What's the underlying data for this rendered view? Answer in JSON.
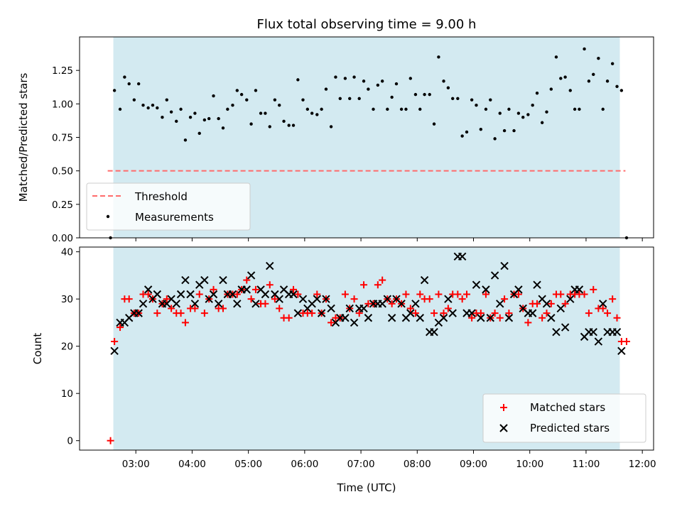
{
  "chart_data": [
    {
      "type": "scatter",
      "title": "Flux total observing time = 9.00 h",
      "ylabel": "Matched/Predicted stars",
      "xlabel": "",
      "xlim": [
        2.0,
        12.2
      ],
      "ylim": [
        0.0,
        1.5
      ],
      "yticks": [
        0.0,
        0.25,
        0.5,
        0.75,
        1.0,
        1.25
      ],
      "ytick_labels": [
        "0.00",
        "0.25",
        "0.50",
        "0.75",
        "1.00",
        "1.25"
      ],
      "observing_window": [
        2.6,
        11.6
      ],
      "window_color": "#d3eaf1",
      "threshold": {
        "label": "Threshold",
        "value": 0.5,
        "x_range": [
          2.5,
          11.7
        ],
        "color": "#ff6b6b"
      },
      "legend": {
        "position": "lower-left",
        "entries": [
          "Threshold",
          "Measurements"
        ]
      },
      "series": [
        {
          "name": "Measurements",
          "color": "#000000",
          "x": [
            2.55,
            2.62,
            2.72,
            2.8,
            2.88,
            2.97,
            3.05,
            3.13,
            3.22,
            3.3,
            3.38,
            3.47,
            3.55,
            3.63,
            3.72,
            3.8,
            3.88,
            3.97,
            4.05,
            4.13,
            4.22,
            4.3,
            4.38,
            4.47,
            4.55,
            4.63,
            4.72,
            4.8,
            4.88,
            4.97,
            5.05,
            5.13,
            5.22,
            5.3,
            5.38,
            5.47,
            5.55,
            5.63,
            5.72,
            5.8,
            5.88,
            5.97,
            6.05,
            6.13,
            6.22,
            6.3,
            6.38,
            6.47,
            6.55,
            6.63,
            6.72,
            6.8,
            6.88,
            6.97,
            7.05,
            7.13,
            7.22,
            7.3,
            7.38,
            7.47,
            7.55,
            7.63,
            7.72,
            7.8,
            7.88,
            7.97,
            8.05,
            8.13,
            8.22,
            8.3,
            8.38,
            8.47,
            8.55,
            8.63,
            8.72,
            8.8,
            8.88,
            8.97,
            9.05,
            9.13,
            9.22,
            9.3,
            9.38,
            9.47,
            9.55,
            9.63,
            9.72,
            9.8,
            9.88,
            9.97,
            10.05,
            10.13,
            10.22,
            10.3,
            10.38,
            10.47,
            10.55,
            10.63,
            10.72,
            10.8,
            10.88,
            10.97,
            11.05,
            11.13,
            11.22,
            11.3,
            11.38,
            11.47,
            11.55,
            11.63,
            11.72
          ],
          "y": [
            0.0,
            1.1,
            0.96,
            1.2,
            1.15,
            1.03,
            1.15,
            0.99,
            0.97,
            0.99,
            0.97,
            0.9,
            1.03,
            0.94,
            0.87,
            0.96,
            0.73,
            0.9,
            0.93,
            0.78,
            0.88,
            0.89,
            1.06,
            0.89,
            0.82,
            0.96,
            0.99,
            1.1,
            1.07,
            1.03,
            0.85,
            1.1,
            0.93,
            0.93,
            0.83,
            1.03,
            0.99,
            0.87,
            0.84,
            0.84,
            1.18,
            1.03,
            0.96,
            0.93,
            0.92,
            0.96,
            1.11,
            0.83,
            1.2,
            1.04,
            1.19,
            1.04,
            1.2,
            1.04,
            1.17,
            1.11,
            0.96,
            1.14,
            1.17,
            0.96,
            1.05,
            1.15,
            0.96,
            0.96,
            1.19,
            1.07,
            0.96,
            1.07,
            1.07,
            0.85,
            1.35,
            1.17,
            1.12,
            1.04,
            1.04,
            0.76,
            0.79,
            1.03,
            0.99,
            0.81,
            0.96,
            1.03,
            0.74,
            0.93,
            0.8,
            0.96,
            0.8,
            0.93,
            0.9,
            0.92,
            0.99,
            1.08,
            0.86,
            0.94,
            1.11,
            1.35,
            1.19,
            1.2,
            1.1,
            0.96,
            0.96,
            1.41,
            1.17,
            1.22,
            1.34,
            0.96,
            1.17,
            1.3,
            1.13,
            1.1,
            0.0
          ]
        }
      ]
    },
    {
      "type": "scatter",
      "title": "",
      "xlabel": "Time (UTC)",
      "ylabel": "Count",
      "xlim": [
        2.0,
        12.2
      ],
      "ylim": [
        -2.0,
        41.0
      ],
      "yticks": [
        0,
        10,
        20,
        30,
        40
      ],
      "ytick_labels": [
        "0",
        "10",
        "20",
        "30",
        "40"
      ],
      "xticks": [
        3,
        4,
        5,
        6,
        7,
        8,
        9,
        10,
        11,
        12
      ],
      "xtick_labels": [
        "03:00",
        "04:00",
        "05:00",
        "06:00",
        "07:00",
        "08:00",
        "09:00",
        "10:00",
        "11:00",
        "12:00"
      ],
      "observing_window": [
        2.6,
        11.6
      ],
      "window_color": "#d3eaf1",
      "legend": {
        "position": "lower-right",
        "entries": [
          "Matched stars",
          "Predicted stars"
        ]
      },
      "series": [
        {
          "name": "Matched stars",
          "marker": "plus",
          "color": "#ff0000",
          "x": [
            2.55,
            2.62,
            2.72,
            2.8,
            2.88,
            2.97,
            3.05,
            3.13,
            3.22,
            3.3,
            3.38,
            3.47,
            3.55,
            3.63,
            3.72,
            3.8,
            3.88,
            3.97,
            4.05,
            4.13,
            4.22,
            4.3,
            4.38,
            4.47,
            4.55,
            4.63,
            4.72,
            4.8,
            4.88,
            4.97,
            5.05,
            5.13,
            5.22,
            5.3,
            5.38,
            5.47,
            5.55,
            5.63,
            5.72,
            5.8,
            5.88,
            5.97,
            6.05,
            6.13,
            6.22,
            6.3,
            6.38,
            6.47,
            6.55,
            6.63,
            6.72,
            6.8,
            6.88,
            6.97,
            7.05,
            7.13,
            7.22,
            7.3,
            7.38,
            7.47,
            7.55,
            7.63,
            7.72,
            7.8,
            7.88,
            7.97,
            8.05,
            8.13,
            8.22,
            8.3,
            8.38,
            8.47,
            8.55,
            8.63,
            8.72,
            8.8,
            8.88,
            8.97,
            9.05,
            9.13,
            9.22,
            9.3,
            9.38,
            9.47,
            9.55,
            9.63,
            9.72,
            9.8,
            9.88,
            9.97,
            10.05,
            10.13,
            10.22,
            10.3,
            10.38,
            10.47,
            10.55,
            10.63,
            10.72,
            10.8,
            10.88,
            10.97,
            11.05,
            11.13,
            11.22,
            11.3,
            11.38,
            11.47,
            11.55,
            11.63,
            11.72
          ],
          "y": [
            0,
            21,
            24,
            30,
            30,
            27,
            27,
            31,
            31,
            30,
            27,
            29,
            30,
            28,
            27,
            27,
            25,
            28,
            28,
            31,
            27,
            30,
            32,
            28,
            28,
            31,
            31,
            31,
            32,
            34,
            30,
            32,
            29,
            29,
            33,
            30,
            28,
            26,
            26,
            32,
            31,
            27,
            27,
            27,
            31,
            27,
            30,
            25,
            26,
            26,
            31,
            28,
            30,
            27,
            33,
            29,
            29,
            33,
            34,
            30,
            29,
            30,
            29,
            31,
            28,
            27,
            31,
            30,
            30,
            27,
            31,
            27,
            28,
            31,
            31,
            30,
            31,
            26,
            27,
            27,
            31,
            26,
            27,
            26,
            30,
            27,
            31,
            31,
            28,
            25,
            29,
            29,
            26,
            27,
            29,
            31,
            31,
            29,
            31,
            31,
            31,
            31,
            27,
            32,
            28,
            28,
            27,
            30,
            26,
            21,
            21
          ]
        },
        {
          "name": "Predicted stars",
          "marker": "x",
          "color": "#000000",
          "x": [
            2.62,
            2.72,
            2.8,
            2.88,
            2.97,
            3.05,
            3.13,
            3.22,
            3.3,
            3.38,
            3.47,
            3.55,
            3.63,
            3.72,
            3.8,
            3.88,
            3.97,
            4.05,
            4.13,
            4.22,
            4.3,
            4.38,
            4.47,
            4.55,
            4.63,
            4.72,
            4.8,
            4.88,
            4.97,
            5.05,
            5.13,
            5.22,
            5.3,
            5.38,
            5.47,
            5.55,
            5.63,
            5.72,
            5.8,
            5.88,
            5.97,
            6.05,
            6.13,
            6.22,
            6.3,
            6.38,
            6.47,
            6.55,
            6.63,
            6.72,
            6.8,
            6.88,
            6.97,
            7.05,
            7.13,
            7.22,
            7.3,
            7.38,
            7.47,
            7.55,
            7.63,
            7.72,
            7.8,
            7.88,
            7.97,
            8.05,
            8.13,
            8.22,
            8.3,
            8.38,
            8.47,
            8.55,
            8.63,
            8.72,
            8.8,
            8.88,
            8.97,
            9.05,
            9.13,
            9.22,
            9.3,
            9.38,
            9.47,
            9.55,
            9.63,
            9.72,
            9.8,
            9.88,
            9.97,
            10.05,
            10.13,
            10.22,
            10.3,
            10.38,
            10.47,
            10.55,
            10.63,
            10.72,
            10.8,
            10.88,
            10.97,
            11.05,
            11.13,
            11.22,
            11.3,
            11.38,
            11.47,
            11.55,
            11.63
          ],
          "y": [
            19,
            25,
            25,
            26,
            27,
            27,
            29,
            32,
            30,
            31,
            29,
            29,
            30,
            29,
            31,
            34,
            31,
            29,
            33,
            34,
            30,
            31,
            29,
            34,
            31,
            31,
            29,
            32,
            32,
            35,
            29,
            32,
            31,
            37,
            31,
            30,
            32,
            31,
            31,
            27,
            30,
            28,
            29,
            30,
            27,
            30,
            28,
            25,
            26,
            26,
            28,
            25,
            28,
            28,
            26,
            29,
            29,
            29,
            30,
            26,
            30,
            29,
            26,
            27,
            29,
            26,
            34,
            23,
            23,
            25,
            26,
            30,
            27,
            39,
            39,
            27,
            27,
            33,
            26,
            32,
            26,
            35,
            29,
            37,
            26,
            31,
            32,
            28,
            27,
            27,
            33,
            30,
            29,
            26,
            23,
            28,
            24,
            30,
            32,
            32,
            22,
            23,
            23,
            21,
            29,
            23,
            23,
            23,
            19
          ]
        }
      ]
    }
  ]
}
